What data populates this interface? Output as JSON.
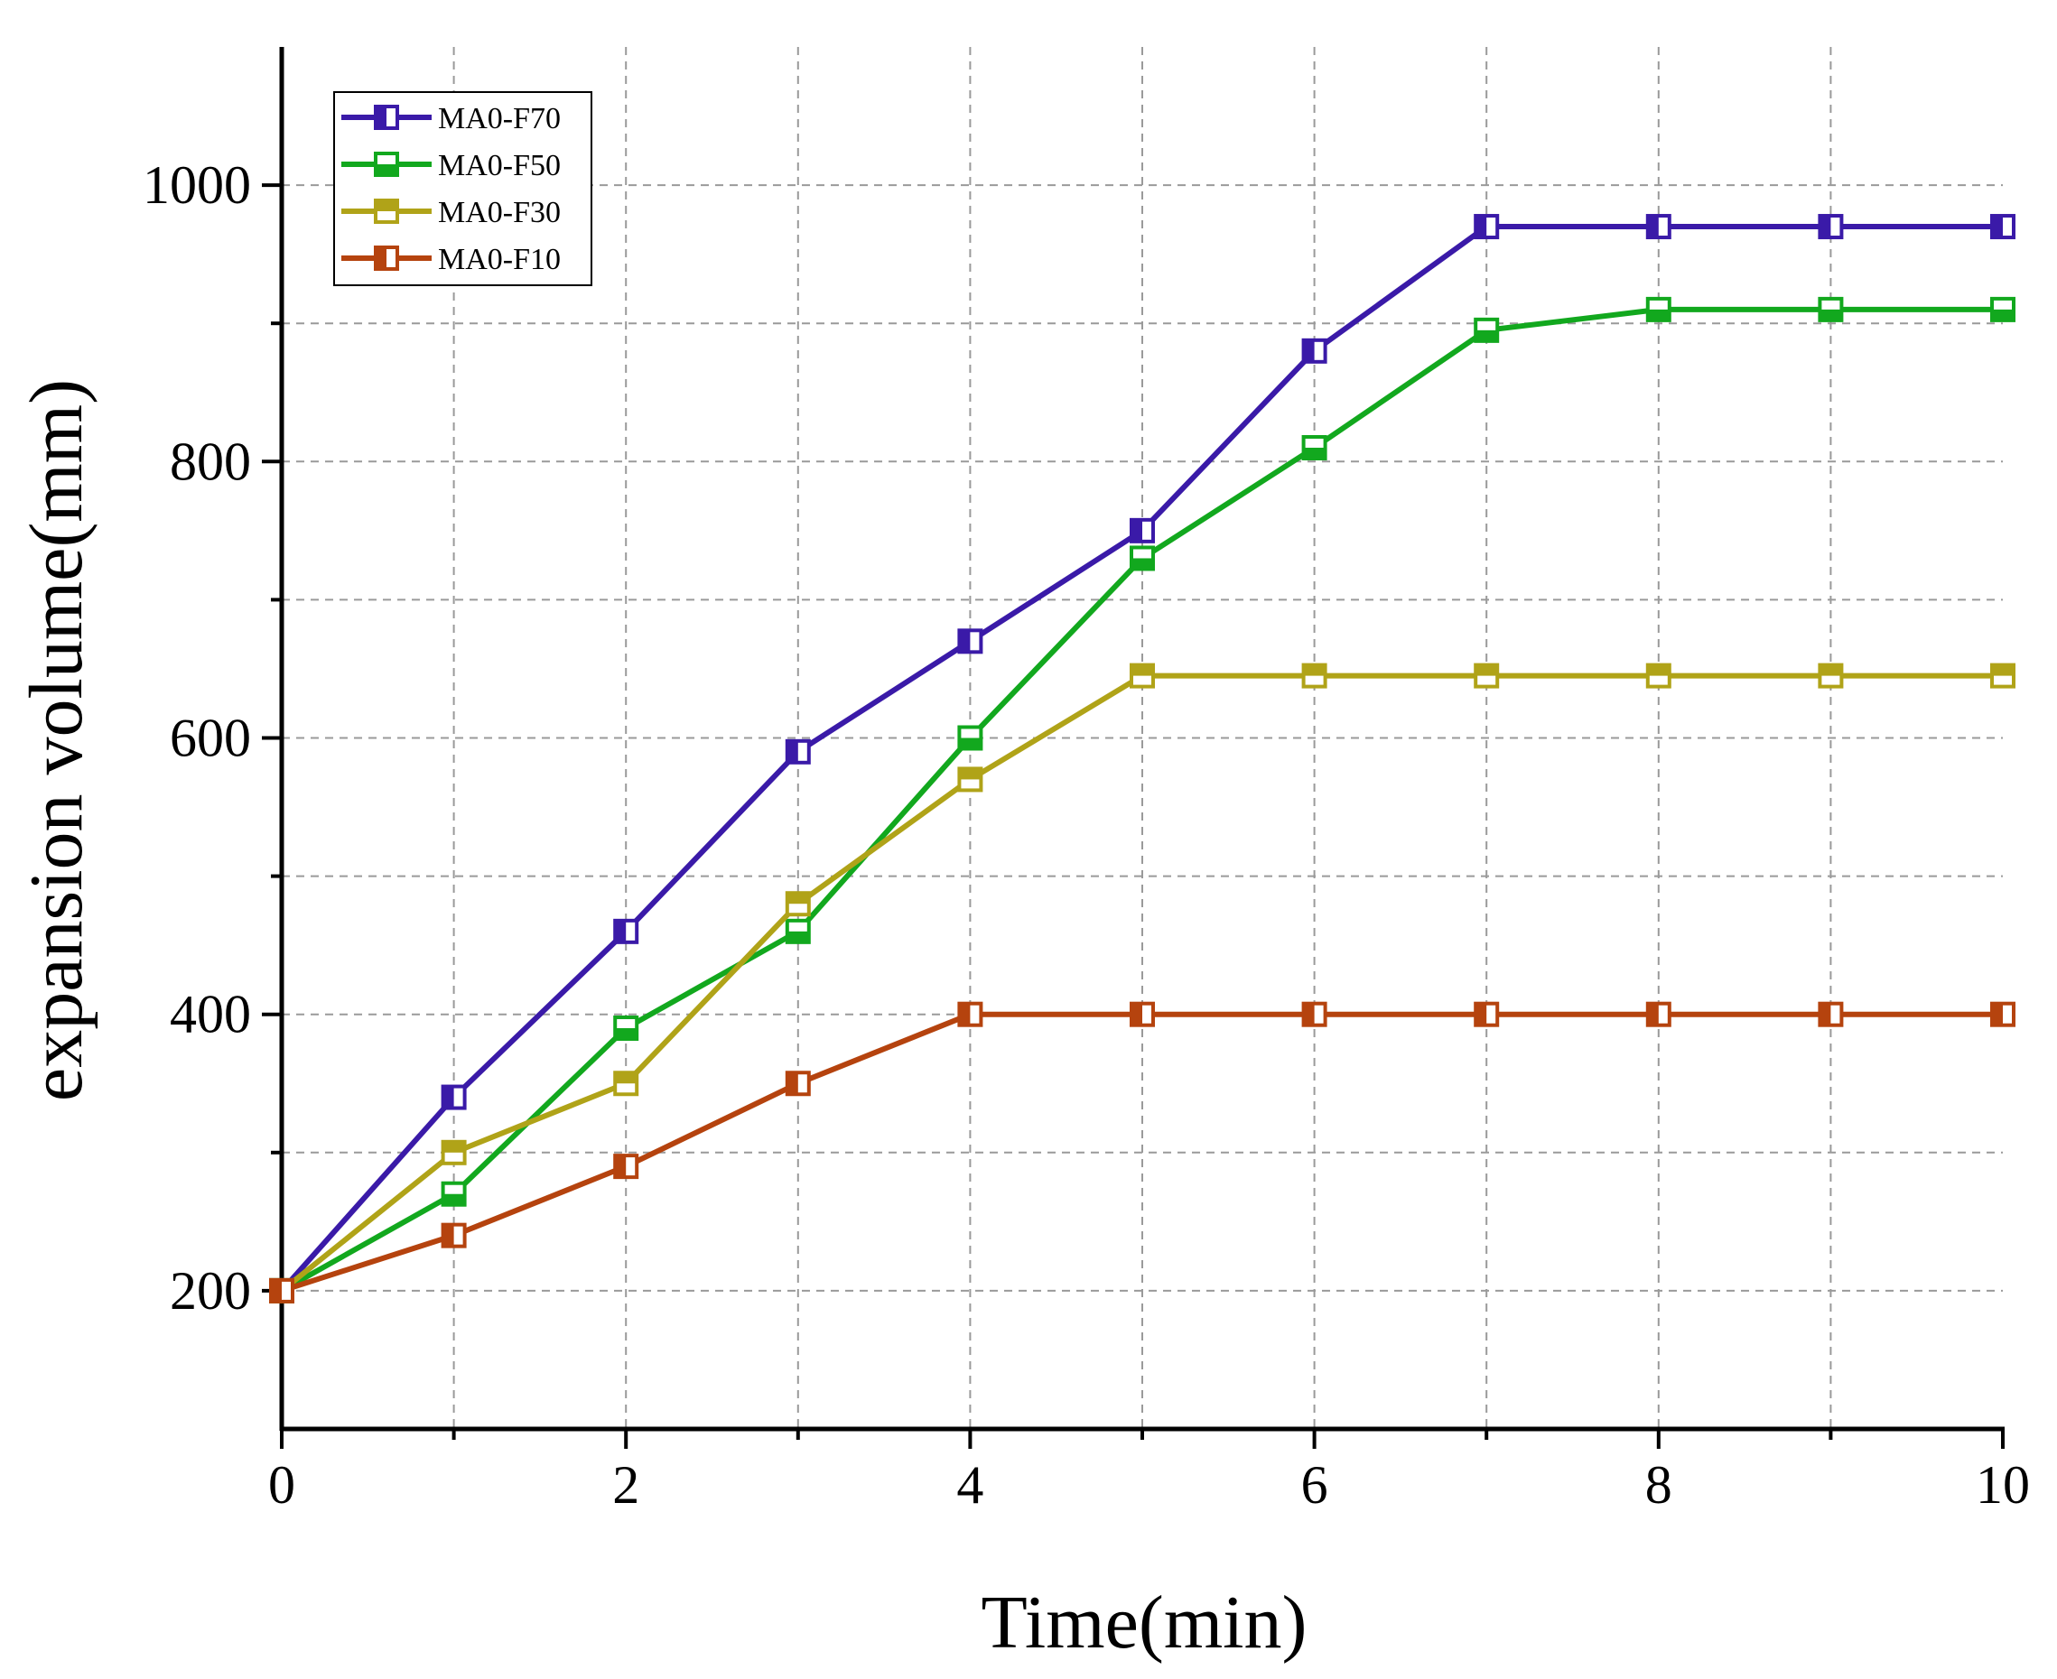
{
  "chart_data": {
    "type": "line",
    "title": "",
    "xlabel": "Time(min)",
    "ylabel": "expansion volume(mm)",
    "x": [
      0,
      1,
      2,
      3,
      4,
      5,
      6,
      7,
      8,
      9,
      10
    ],
    "xlim": [
      0,
      10
    ],
    "ylim": [
      100,
      1100
    ],
    "x_ticks": [
      0,
      2,
      4,
      6,
      8,
      10
    ],
    "x_minor_ticks": [
      1,
      3,
      5,
      7,
      9
    ],
    "y_ticks": [
      200,
      400,
      600,
      800,
      1000
    ],
    "y_minor_ticks": [
      300,
      500,
      700,
      900
    ],
    "x_tick_labels": [
      "0",
      "2",
      "4",
      "6",
      "8",
      "10"
    ],
    "y_tick_labels": [
      "200",
      "400",
      "600",
      "800",
      "1000"
    ],
    "grid": true,
    "legend_position": "top-left",
    "series": [
      {
        "name": "MA0-F70",
        "color": "#3a1aa8",
        "marker": "square-half-filled-left",
        "values": [
          200,
          340,
          460,
          590,
          670,
          750,
          880,
          970,
          970,
          970,
          970
        ]
      },
      {
        "name": "MA0-F50",
        "color": "#12a81e",
        "marker": "square-half-filled-bottom",
        "values": [
          200,
          270,
          390,
          460,
          600,
          730,
          810,
          895,
          910,
          910,
          910
        ]
      },
      {
        "name": "MA0-F30",
        "color": "#b0a318",
        "marker": "square-half-filled-top",
        "values": [
          200,
          300,
          350,
          480,
          570,
          645,
          645,
          645,
          645,
          645,
          645
        ]
      },
      {
        "name": "MA0-F10",
        "color": "#b5430e",
        "marker": "square-half-filled-left",
        "values": [
          200,
          240,
          290,
          350,
          400,
          400,
          400,
          400,
          400,
          400,
          400
        ]
      }
    ]
  }
}
